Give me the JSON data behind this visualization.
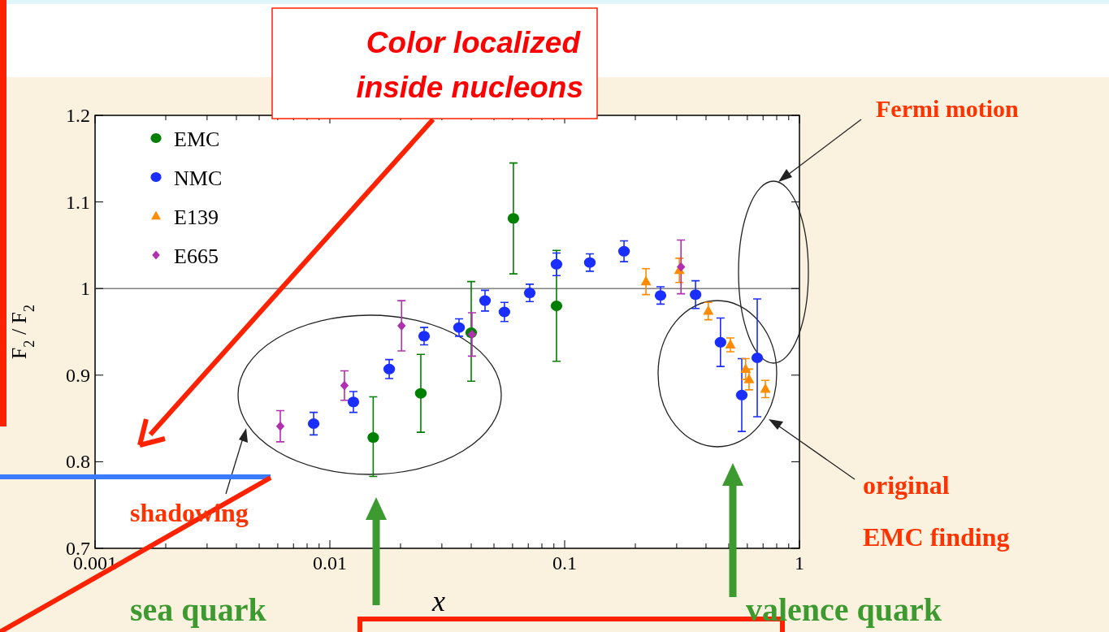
{
  "chart_data": {
    "type": "scatter",
    "xlabel": "x",
    "ylabel": "F$_{2}$ / F$_{2}$",
    "log": "x",
    "xlim": [
      0.001,
      1
    ],
    "ylim": [
      0.7,
      1.2
    ],
    "xticks": [
      0.001,
      {
        "value": 0.002,
        "label": null
      },
      {
        "value": 0.003,
        "label": null
      },
      {
        "value": 0.004,
        "label": null
      },
      {
        "value": 0.005,
        "label": null
      },
      {
        "value": 0.006,
        "label": null
      },
      {
        "value": 0.007,
        "label": null
      },
      {
        "value": 0.008,
        "label": null
      },
      {
        "value": 0.009,
        "label": null
      },
      0.01,
      {
        "value": 0.02,
        "label": null
      },
      {
        "value": 0.03,
        "label": null
      },
      {
        "value": 0.04,
        "label": null
      },
      {
        "value": 0.05,
        "label": null
      },
      {
        "value": 0.06,
        "label": null
      },
      {
        "value": 0.07,
        "label": null
      },
      {
        "value": 0.08,
        "label": null
      },
      {
        "value": 0.09,
        "label": null
      },
      0.1,
      {
        "value": 0.2,
        "label": null
      },
      {
        "value": 0.3,
        "label": null
      },
      {
        "value": 0.4,
        "label": null
      },
      {
        "value": 0.5,
        "label": null
      },
      {
        "value": 0.6,
        "label": null
      },
      {
        "value": 0.7,
        "label": null
      },
      {
        "value": 0.8,
        "label": null
      },
      {
        "value": 0.9,
        "label": null
      },
      1
    ],
    "yticks": [
      0.7,
      0.8,
      0.9,
      1,
      1.1,
      1.2
    ],
    "grid": false,
    "legend": "top left",
    "ref_lines": [
      {
        "axis": "y",
        "value": 1,
        "color": "#808080"
      }
    ],
    "series": [
      {
        "name": "EMC",
        "color": "#008000",
        "marker": "circle",
        "x": [
          0.0153,
          0.0244,
          0.04,
          0.0605,
          0.0923
        ],
        "values": [
          0.828,
          0.879,
          0.949,
          1.081,
          0.98
        ],
        "errors": [
          [
            0.783,
            0.875
          ],
          [
            0.834,
            0.924
          ],
          [
            0.893,
            1.008
          ],
          [
            1.017,
            1.145
          ],
          [
            0.916,
            1.044
          ]
        ]
      },
      {
        "name": "NMC",
        "color": "#1a2eff",
        "marker": "circle",
        "x": [
          0.00853,
          0.0126,
          0.0179,
          0.0252,
          0.0355,
          0.0458,
          0.0554,
          0.071,
          0.0923,
          0.128,
          0.179,
          0.256,
          0.361,
          0.461,
          0.568,
          0.661
        ],
        "values": [
          0.844,
          0.869,
          0.907,
          0.945,
          0.955,
          0.986,
          0.973,
          0.995,
          1.028,
          1.03,
          1.043,
          0.992,
          0.993,
          0.938,
          0.877,
          0.92
        ],
        "errors": [
          0.013,
          0.012,
          0.011,
          0.01,
          0.01,
          0.012,
          0.011,
          0.01,
          0.013,
          0.01,
          0.012,
          0.01,
          0.016,
          0.028,
          0.042,
          0.068
        ]
      },
      {
        "name": "E139",
        "color": "#ff8c00",
        "marker": "triangle",
        "x": [
          0.222,
          0.308,
          0.409,
          0.508,
          0.59,
          0.61,
          0.716
        ],
        "values": [
          1.008,
          1.021,
          0.974,
          0.935,
          0.907,
          0.895,
          0.884
        ],
        "errors": [
          0.015,
          0.014,
          0.01,
          0.008,
          0.012,
          0.012,
          0.01
        ]
      },
      {
        "name": "E665",
        "color": "#b030b0",
        "marker": "diamond",
        "x": [
          0.00615,
          0.01154,
          0.0202,
          0.0403,
          0.313
        ],
        "values": [
          0.841,
          0.888,
          0.957,
          0.947,
          1.025
        ],
        "errors": [
          0.018,
          0.017,
          0.029,
          0.025,
          0.031
        ]
      }
    ],
    "annotations": [
      "Color localized inside nucleons",
      "Fermi motion",
      "shadowing",
      "original EMC finding",
      "sea quark",
      "valence quark"
    ]
  }
}
